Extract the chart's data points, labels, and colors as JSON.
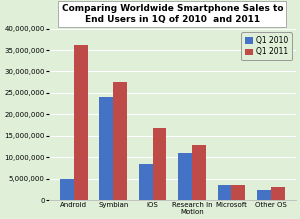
{
  "title": "Comparing Worldwide Smartphone Sales to\nEnd Users in 1Q of 2010  and 2011",
  "categories": [
    "Android",
    "Symbian",
    "iOS",
    "Research In\nMotion",
    "Microsoft",
    "Other OS"
  ],
  "q1_2010": [
    5000000,
    24000000,
    8500000,
    11000000,
    3700000,
    2500000
  ],
  "q1_2011": [
    36200000,
    27500000,
    16800000,
    13000000,
    3500000,
    3200000
  ],
  "color_2010": "#4472C4",
  "color_2011": "#BE4B48",
  "legend_2010": "Q1 2010",
  "legend_2011": "Q1 2011",
  "ylim": [
    0,
    40000000
  ],
  "yticks": [
    0,
    5000000,
    10000000,
    15000000,
    20000000,
    25000000,
    30000000,
    35000000,
    40000000
  ],
  "bg_color": "#DFEfD8",
  "plot_bg_color": "#DFEfD8",
  "title_box_facecolor": "#FFFFFF",
  "title_box_edgecolor": "#AAAAAA",
  "legend_box_facecolor": "#DFEfD8",
  "legend_box_edgecolor": "#999999",
  "grid_color": "#FFFFFF",
  "spine_color": "#BBBBBB"
}
